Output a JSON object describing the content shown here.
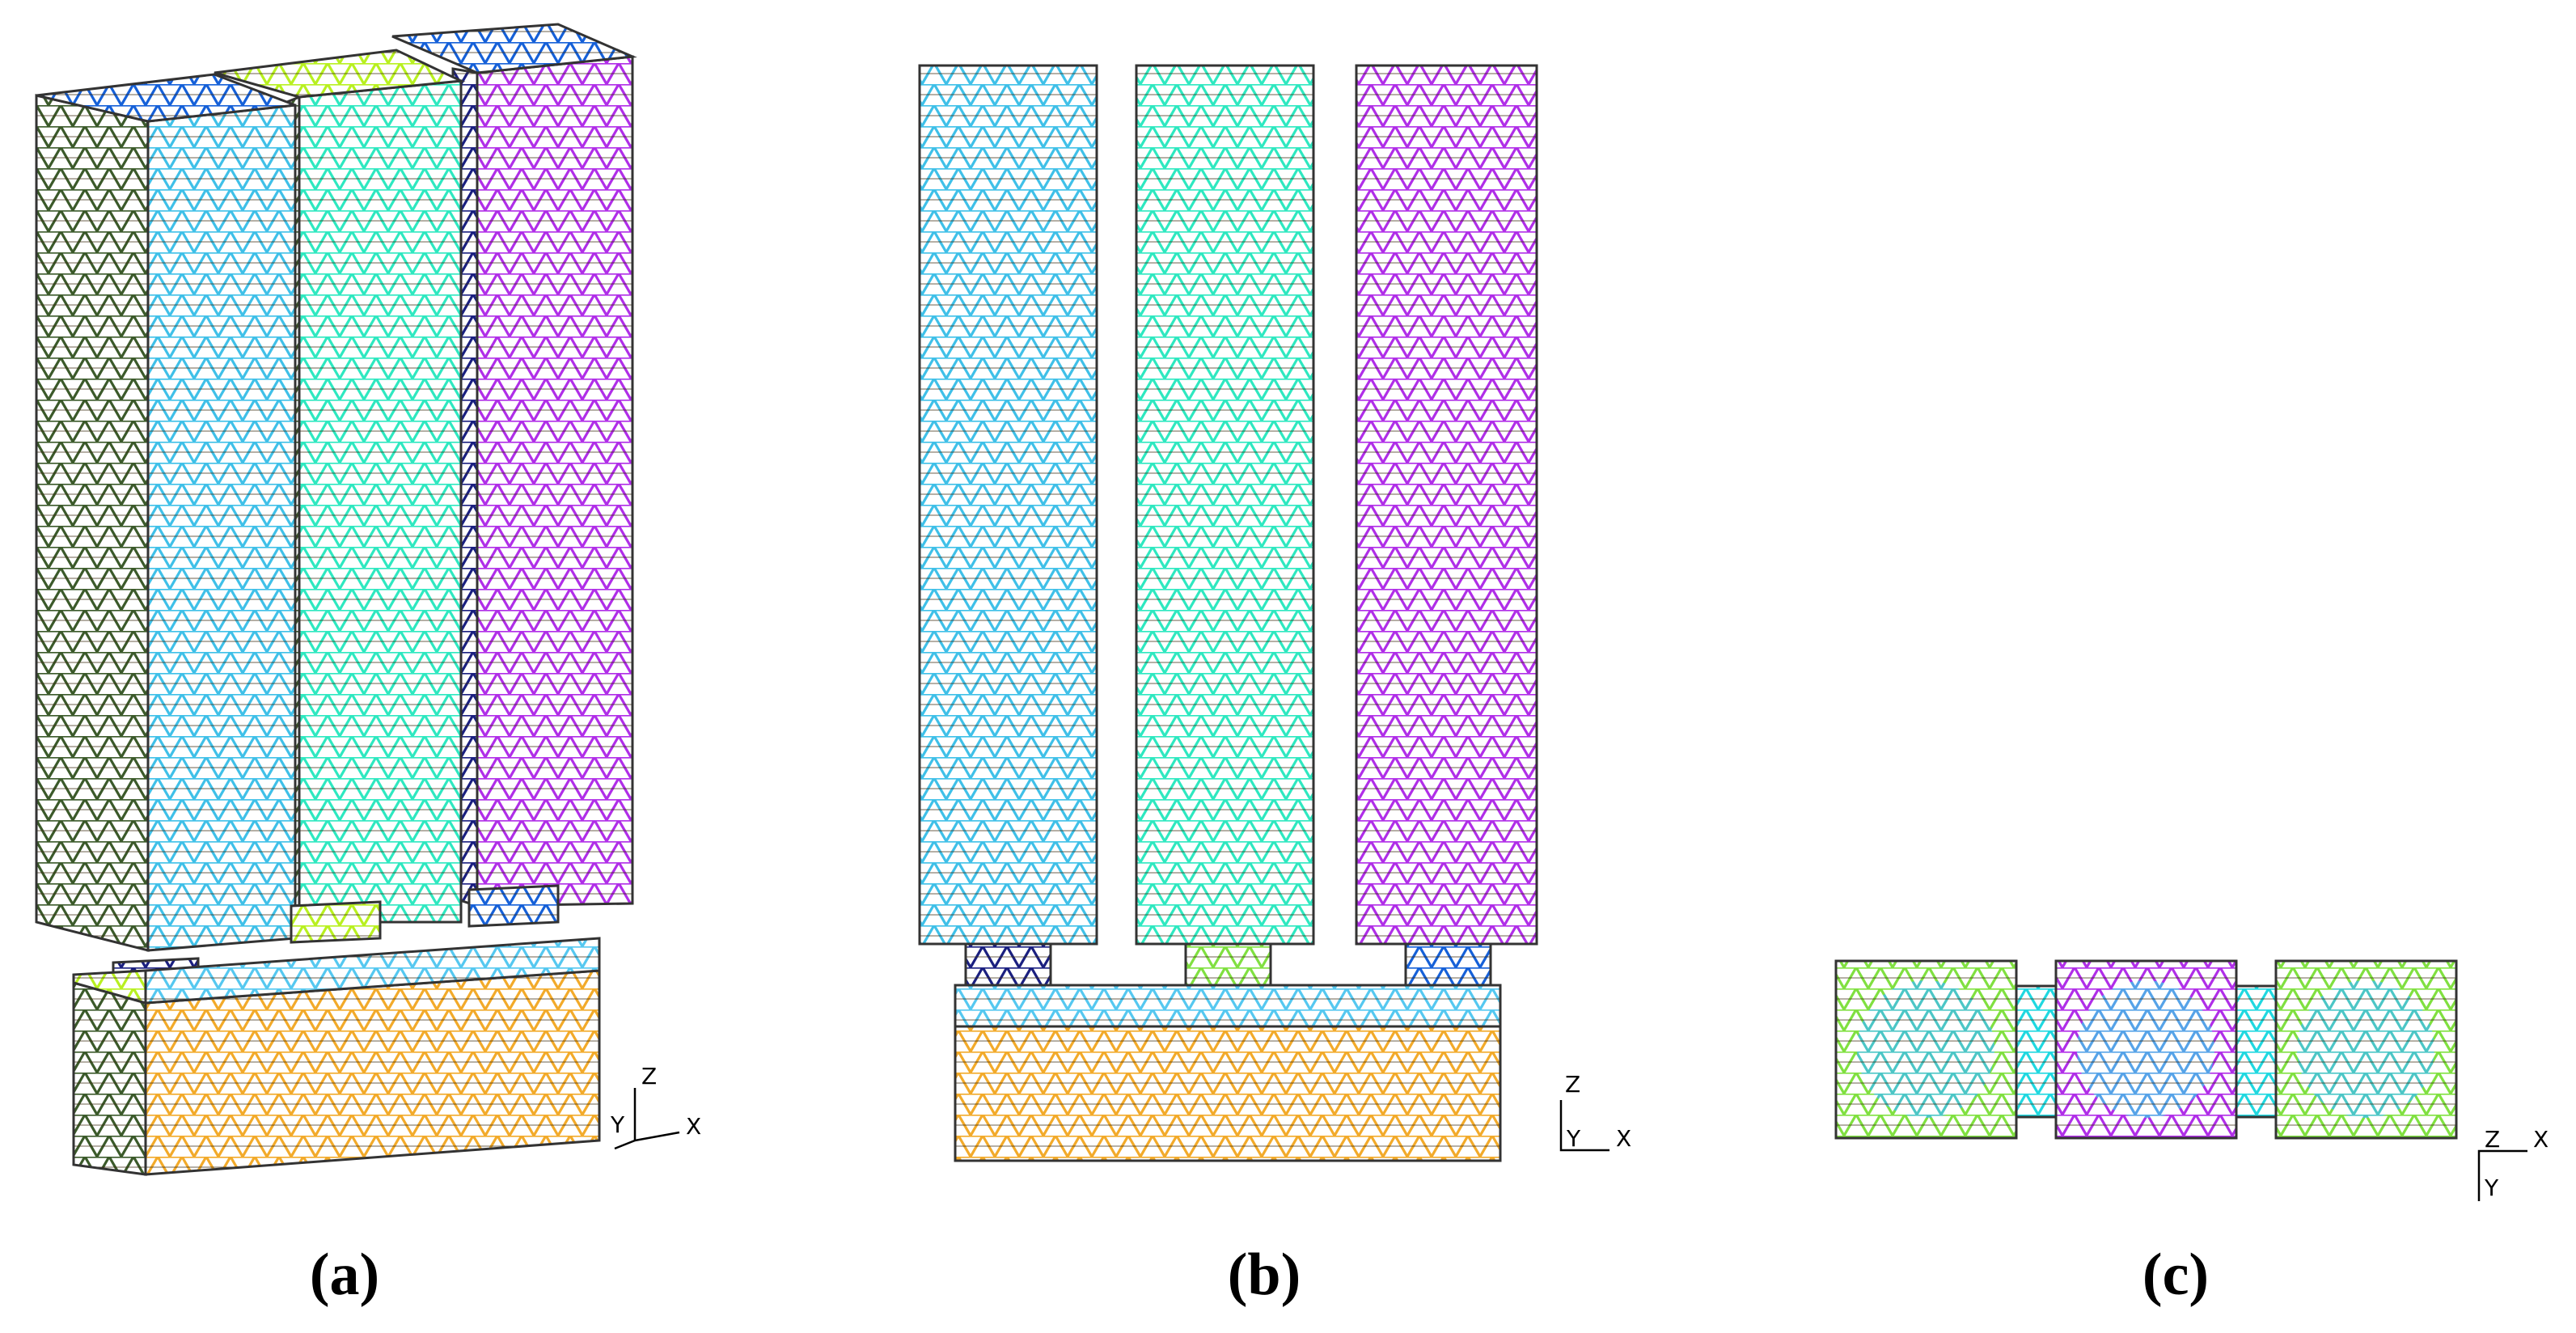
{
  "panels": [
    {
      "label": "(a)",
      "axes": {
        "z": "Z",
        "y": "Y",
        "x": "X"
      }
    },
    {
      "label": "(b)",
      "axes": {
        "z": "Z",
        "y": "Y",
        "x": "X"
      }
    },
    {
      "label": "(c)",
      "axes": {
        "z": "Z",
        "y": "Y",
        "x": "X"
      }
    }
  ]
}
